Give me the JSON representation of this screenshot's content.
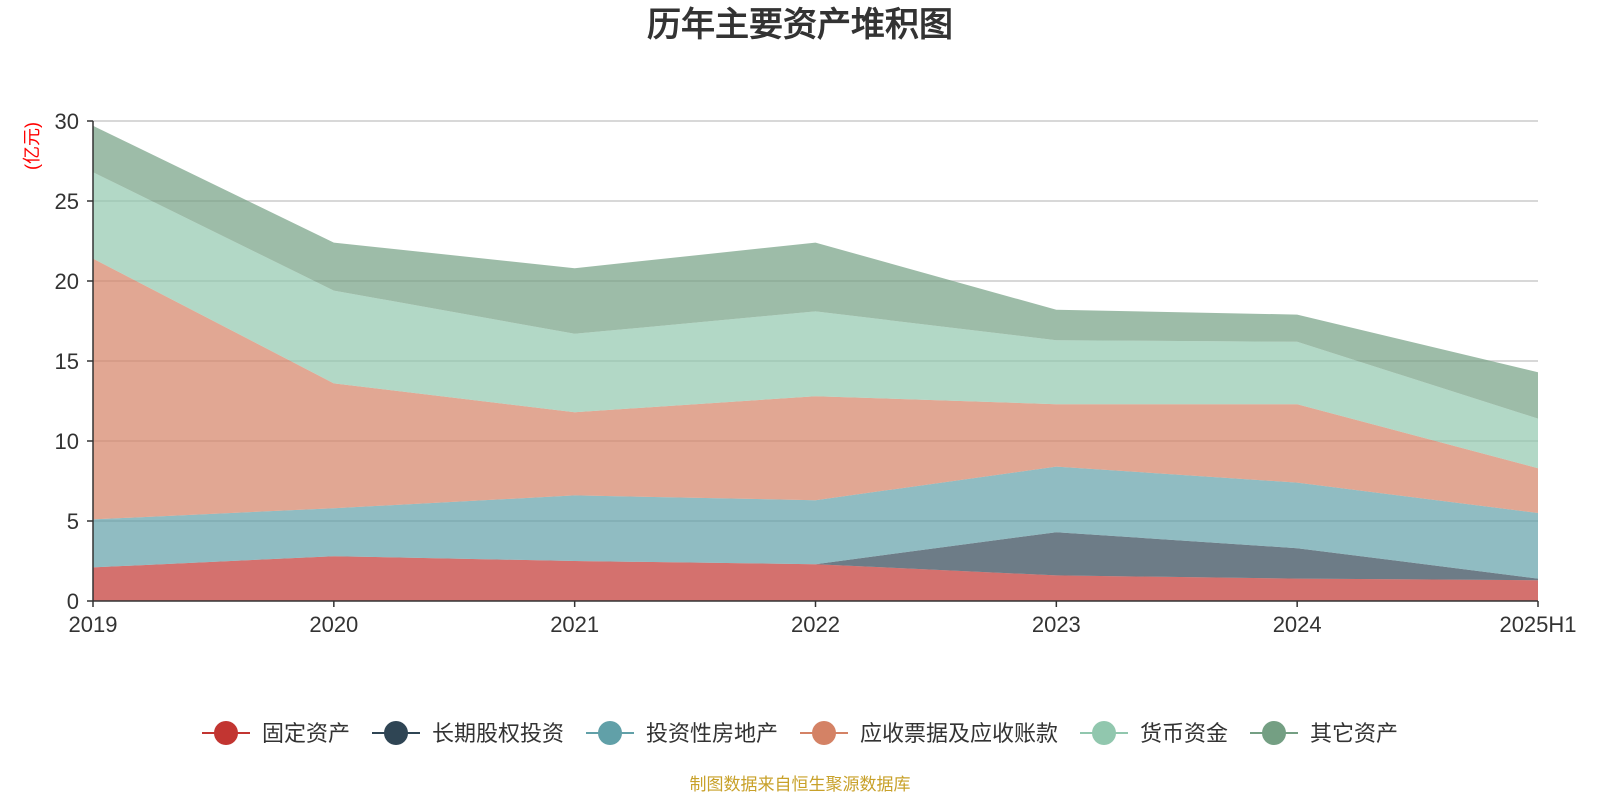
{
  "chart_data": {
    "type": "area",
    "stacked": true,
    "title": "历年主要资产堆积图",
    "y_unit": "(亿元)",
    "x": [
      "2019",
      "2020",
      "2021",
      "2022",
      "2023",
      "2024",
      "2025H1"
    ],
    "ylim": [
      0,
      30
    ],
    "yticks": [
      0,
      5,
      10,
      15,
      20,
      25,
      30
    ],
    "grid": true,
    "legend_position": "bottom",
    "series": [
      {
        "name": "固定资产",
        "color": "#c23531",
        "values": [
          2.1,
          2.8,
          2.5,
          2.3,
          1.6,
          1.4,
          1.3
        ]
      },
      {
        "name": "长期股权投资",
        "color": "#2f4554",
        "values": [
          0.0,
          0.0,
          0.0,
          0.0,
          2.7,
          1.9,
          0.1
        ]
      },
      {
        "name": "投资性房地产",
        "color": "#61a0a8",
        "values": [
          3.0,
          3.0,
          4.1,
          4.0,
          4.1,
          4.1,
          4.1
        ]
      },
      {
        "name": "应收票据及应收账款",
        "color": "#d48265",
        "values": [
          16.3,
          7.8,
          5.2,
          6.5,
          3.9,
          4.9,
          2.8
        ]
      },
      {
        "name": "货币资金",
        "color": "#91c7ae",
        "values": [
          5.4,
          5.8,
          4.9,
          5.3,
          4.0,
          3.9,
          3.1
        ]
      },
      {
        "name": "其它资产",
        "color": "#749f83",
        "values": [
          2.9,
          3.0,
          4.1,
          4.3,
          1.9,
          1.7,
          2.9
        ]
      }
    ],
    "source": "制图数据来自恒生聚源数据库",
    "unit_color": "#ff0000",
    "source_color": "#c8a12a"
  }
}
